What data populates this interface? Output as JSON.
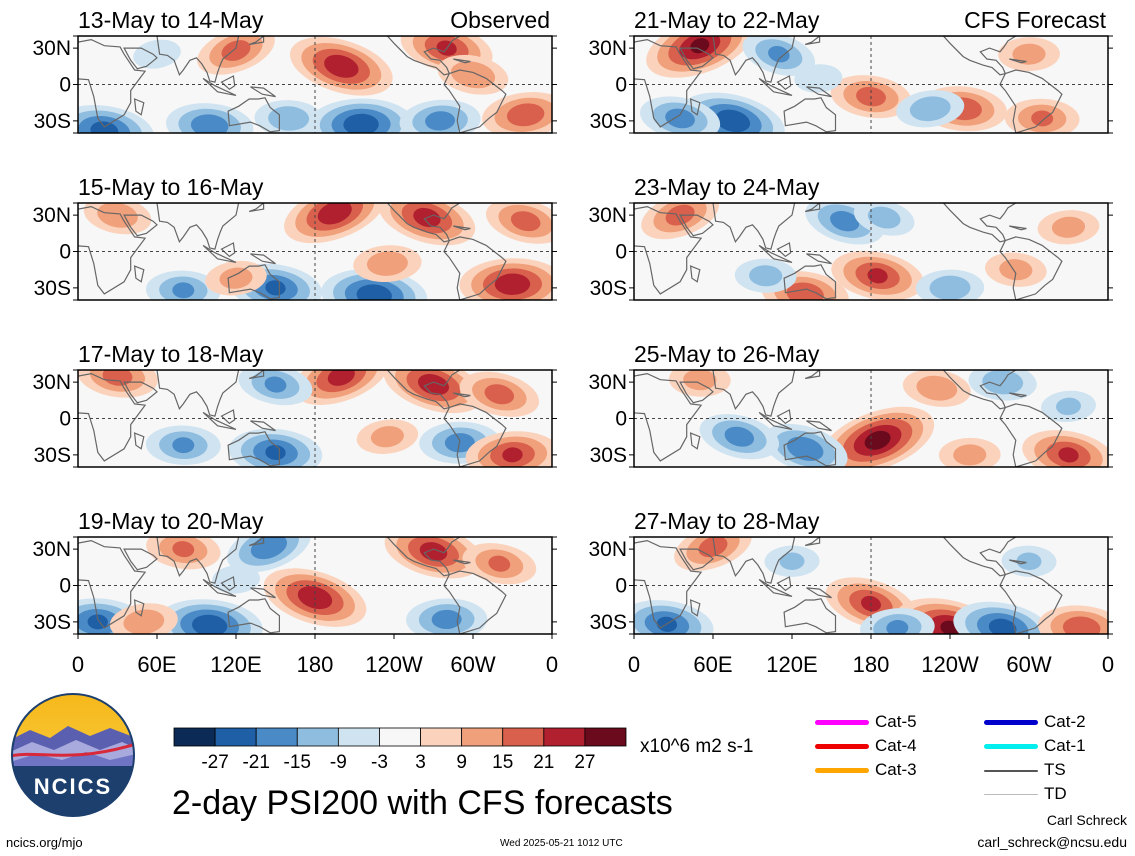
{
  "app": {
    "title": "2-day PSI200 with CFS forecasts",
    "footer_url": "ncics.org/mjo",
    "timestamp": "Wed 2025-05-21 1012 UTC",
    "author": "Carl Schreck",
    "email": "carl_schreck@ncsu.edu",
    "logo_text": "NCICS",
    "units": "x10^6 m2 s-1"
  },
  "chart_data": {
    "type": "heatmap",
    "column_headers": {
      "left": "Observed",
      "right": "CFS Forecast"
    },
    "panels_left": [
      {
        "label": "13-May to 14-May",
        "kind": "Observed"
      },
      {
        "label": "15-May to 16-May",
        "kind": "Observed"
      },
      {
        "label": "17-May to 18-May",
        "kind": "Observed"
      },
      {
        "label": "19-May to 20-May",
        "kind": "Observed"
      }
    ],
    "panels_right": [
      {
        "label": "21-May to 22-May",
        "kind": "CFS Forecast"
      },
      {
        "label": "23-May to 24-May",
        "kind": "CFS Forecast"
      },
      {
        "label": "25-May to 26-May",
        "kind": "CFS Forecast"
      },
      {
        "label": "27-May to 28-May",
        "kind": "CFS Forecast"
      }
    ],
    "lat_ticks": [
      "30N",
      "0",
      "30S"
    ],
    "lon_ticks": [
      "0",
      "60E",
      "120E",
      "180",
      "120W",
      "60W",
      "0"
    ],
    "colorbar": {
      "ticks": [
        "-27",
        "-21",
        "-15",
        "-9",
        "-3",
        "3",
        "9",
        "15",
        "21",
        "27"
      ],
      "colors": [
        "#0b2a55",
        "#1f5fa6",
        "#4a8ac6",
        "#8fbde0",
        "#cfe3f1",
        "#f7f7f7",
        "#fbd3bd",
        "#f0a07b",
        "#d9604c",
        "#b0202f",
        "#6b0a1c"
      ]
    },
    "storm_legend": [
      {
        "label": "Cat-5",
        "color": "#ff00ff"
      },
      {
        "label": "Cat-4",
        "color": "#ee0000"
      },
      {
        "label": "Cat-3",
        "color": "#ffa500"
      },
      {
        "label": "Cat-2",
        "color": "#0000cc"
      },
      {
        "label": "Cat-1",
        "color": "#00eeee"
      },
      {
        "label": "TS",
        "color": "#555555"
      },
      {
        "label": "TD",
        "color": "#bbbbbb"
      }
    ],
    "anomaly_centers_left": [
      [
        {
          "lon": 120,
          "lat": 28,
          "v": 18
        },
        {
          "lon": 200,
          "lat": 15,
          "v": 26
        },
        {
          "lon": 280,
          "lat": 30,
          "v": 22
        },
        {
          "lon": 300,
          "lat": 8,
          "v": 15
        },
        {
          "lon": 20,
          "lat": -38,
          "v": -24
        },
        {
          "lon": 100,
          "lat": -34,
          "v": -20
        },
        {
          "lon": 160,
          "lat": -28,
          "v": -14
        },
        {
          "lon": 215,
          "lat": -33,
          "v": -26
        },
        {
          "lon": 275,
          "lat": -30,
          "v": -18
        },
        {
          "lon": 340,
          "lat": -25,
          "v": 20
        },
        {
          "lon": 60,
          "lat": 25,
          "v": -8
        }
      ],
      [
        {
          "lon": 195,
          "lat": 32,
          "v": 26
        },
        {
          "lon": 265,
          "lat": 28,
          "v": 24
        },
        {
          "lon": 340,
          "lat": 25,
          "v": 18
        },
        {
          "lon": 30,
          "lat": 30,
          "v": 14
        },
        {
          "lon": 150,
          "lat": -30,
          "v": -22
        },
        {
          "lon": 225,
          "lat": -36,
          "v": -26
        },
        {
          "lon": 80,
          "lat": -32,
          "v": -16
        },
        {
          "lon": 330,
          "lat": -27,
          "v": 26
        },
        {
          "lon": 235,
          "lat": -10,
          "v": 14
        },
        {
          "lon": 120,
          "lat": -22,
          "v": 12
        }
      ],
      [
        {
          "lon": 200,
          "lat": 35,
          "v": 24
        },
        {
          "lon": 270,
          "lat": 28,
          "v": 25
        },
        {
          "lon": 320,
          "lat": 20,
          "v": 18
        },
        {
          "lon": 150,
          "lat": 28,
          "v": -16
        },
        {
          "lon": 30,
          "lat": 35,
          "v": 18
        },
        {
          "lon": 150,
          "lat": -28,
          "v": -22
        },
        {
          "lon": 80,
          "lat": -22,
          "v": -16
        },
        {
          "lon": 290,
          "lat": -20,
          "v": -18
        },
        {
          "lon": 330,
          "lat": -30,
          "v": 22
        },
        {
          "lon": 235,
          "lat": -15,
          "v": 12
        }
      ],
      [
        {
          "lon": 145,
          "lat": 32,
          "v": -20
        },
        {
          "lon": 180,
          "lat": -10,
          "v": 26
        },
        {
          "lon": 270,
          "lat": 28,
          "v": 24
        },
        {
          "lon": 320,
          "lat": 18,
          "v": 16
        },
        {
          "lon": 80,
          "lat": 30,
          "v": 16
        },
        {
          "lon": 100,
          "lat": -33,
          "v": -26
        },
        {
          "lon": 15,
          "lat": -30,
          "v": -22
        },
        {
          "lon": 280,
          "lat": -28,
          "v": -18
        },
        {
          "lon": 120,
          "lat": 5,
          "v": -8
        },
        {
          "lon": 50,
          "lat": -30,
          "v": 14
        }
      ]
    ],
    "anomaly_centers_right": [
      [
        {
          "lon": 50,
          "lat": 32,
          "v": 28
        },
        {
          "lon": 110,
          "lat": 25,
          "v": -16
        },
        {
          "lon": 75,
          "lat": -30,
          "v": -26
        },
        {
          "lon": 35,
          "lat": -28,
          "v": -18
        },
        {
          "lon": 180,
          "lat": -10,
          "v": 18
        },
        {
          "lon": 250,
          "lat": -20,
          "v": 20
        },
        {
          "lon": 310,
          "lat": -28,
          "v": 16
        },
        {
          "lon": 300,
          "lat": 25,
          "v": 12
        },
        {
          "lon": 140,
          "lat": 5,
          "v": -8
        },
        {
          "lon": 225,
          "lat": -20,
          "v": -14
        }
      ],
      [
        {
          "lon": 35,
          "lat": 30,
          "v": 18
        },
        {
          "lon": 160,
          "lat": 25,
          "v": -18
        },
        {
          "lon": 190,
          "lat": 28,
          "v": -12
        },
        {
          "lon": 185,
          "lat": -20,
          "v": 22
        },
        {
          "lon": 130,
          "lat": -35,
          "v": 20
        },
        {
          "lon": 290,
          "lat": -15,
          "v": 12
        },
        {
          "lon": 100,
          "lat": -20,
          "v": -12
        },
        {
          "lon": 240,
          "lat": -30,
          "v": -14
        },
        {
          "lon": 330,
          "lat": 20,
          "v": 12
        }
      ],
      [
        {
          "lon": 185,
          "lat": -18,
          "v": 30
        },
        {
          "lon": 130,
          "lat": -25,
          "v": -20
        },
        {
          "lon": 80,
          "lat": -15,
          "v": -18
        },
        {
          "lon": 330,
          "lat": -30,
          "v": 22
        },
        {
          "lon": 230,
          "lat": 25,
          "v": 14
        },
        {
          "lon": 280,
          "lat": 30,
          "v": -14
        },
        {
          "lon": 50,
          "lat": 32,
          "v": 12
        },
        {
          "lon": 255,
          "lat": -30,
          "v": 12
        },
        {
          "lon": 330,
          "lat": 10,
          "v": -10
        }
      ],
      [
        {
          "lon": 60,
          "lat": 32,
          "v": 18
        },
        {
          "lon": 180,
          "lat": -15,
          "v": 22
        },
        {
          "lon": 240,
          "lat": -35,
          "v": 28
        },
        {
          "lon": 280,
          "lat": -35,
          "v": -24
        },
        {
          "lon": 25,
          "lat": -32,
          "v": -22
        },
        {
          "lon": 340,
          "lat": -35,
          "v": 20
        },
        {
          "lon": 300,
          "lat": 20,
          "v": -10
        },
        {
          "lon": 120,
          "lat": 20,
          "v": -10
        },
        {
          "lon": 200,
          "lat": -35,
          "v": -16
        }
      ]
    ]
  }
}
